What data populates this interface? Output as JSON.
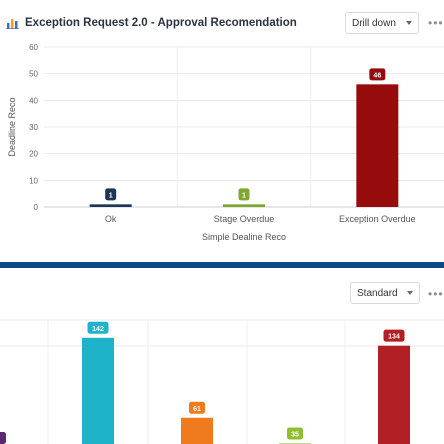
{
  "panel1": {
    "title": "Exception Request 2.0 - Approval Recomendation",
    "title_icon": "bar-chart-icon",
    "dropdown_label": "Drill down",
    "more_icon": "more-horizontal-icon"
  },
  "panel2": {
    "dropdown_label": "Standard",
    "more_icon": "more-horizontal-icon"
  },
  "chart_data": [
    {
      "type": "bar",
      "title": "Exception Request 2.0 - Approval Recomendation",
      "xlabel": "Simple Dealine Reco",
      "ylabel": "Deadline Reco",
      "ylim": [
        0,
        60
      ],
      "yticks": [
        0,
        10,
        20,
        30,
        40,
        50,
        60
      ],
      "grid": true,
      "categories": [
        "Ok",
        "Stage Overdue",
        "Exception Overdue"
      ],
      "values": [
        1,
        1,
        46
      ],
      "colors": [
        "#1f3558",
        "#7ea631",
        "#960c0c"
      ]
    },
    {
      "type": "bar",
      "grid": true,
      "values": [
        142,
        61,
        35,
        134
      ],
      "colors": [
        "#1fb3c9",
        "#f07a1e",
        "#8fbf2e",
        "#b21f24"
      ]
    }
  ]
}
